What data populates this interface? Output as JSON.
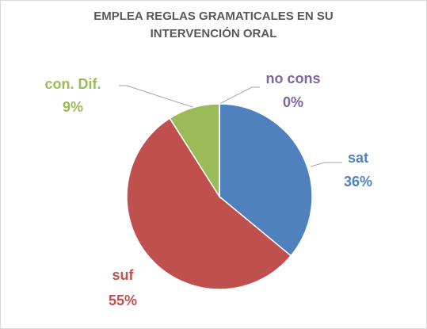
{
  "chart_data": {
    "type": "pie",
    "title": "EMPLEA REGLAS GRAMATICALES EN SU INTERVENCIÓN ORAL",
    "categories": [
      "sat",
      "suf",
      "con. Dif.",
      "no cons"
    ],
    "values": [
      36,
      55,
      9,
      0
    ],
    "value_labels": [
      "36%",
      "55%",
      "9%",
      "0%"
    ],
    "colors": [
      "#4f81bd",
      "#c0504d",
      "#9bbb59",
      "#8064a2"
    ]
  }
}
